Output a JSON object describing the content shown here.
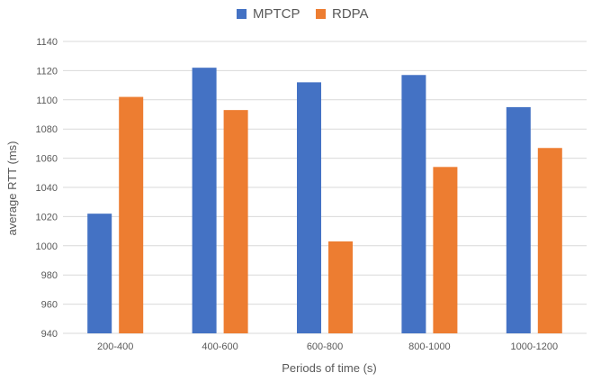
{
  "chart_data": {
    "type": "bar",
    "title": "",
    "xlabel": "Periods of time (s)",
    "ylabel": "average RTT (ms)",
    "categories": [
      "200-400",
      "400-600",
      "600-800",
      "800-1000",
      "1000-1200"
    ],
    "series": [
      {
        "name": "MPTCP",
        "color": "#4472C4",
        "values": [
          1022,
          1122,
          1112,
          1117,
          1095
        ]
      },
      {
        "name": "RDPA",
        "color": "#ED7D31",
        "values": [
          1102,
          1093,
          1003,
          1054,
          1067
        ]
      }
    ],
    "ylim": [
      940,
      1140
    ],
    "yticks": [
      940,
      960,
      980,
      1000,
      1020,
      1040,
      1060,
      1080,
      1100,
      1120,
      1140
    ],
    "grid": true,
    "legend_position": "top-center"
  }
}
